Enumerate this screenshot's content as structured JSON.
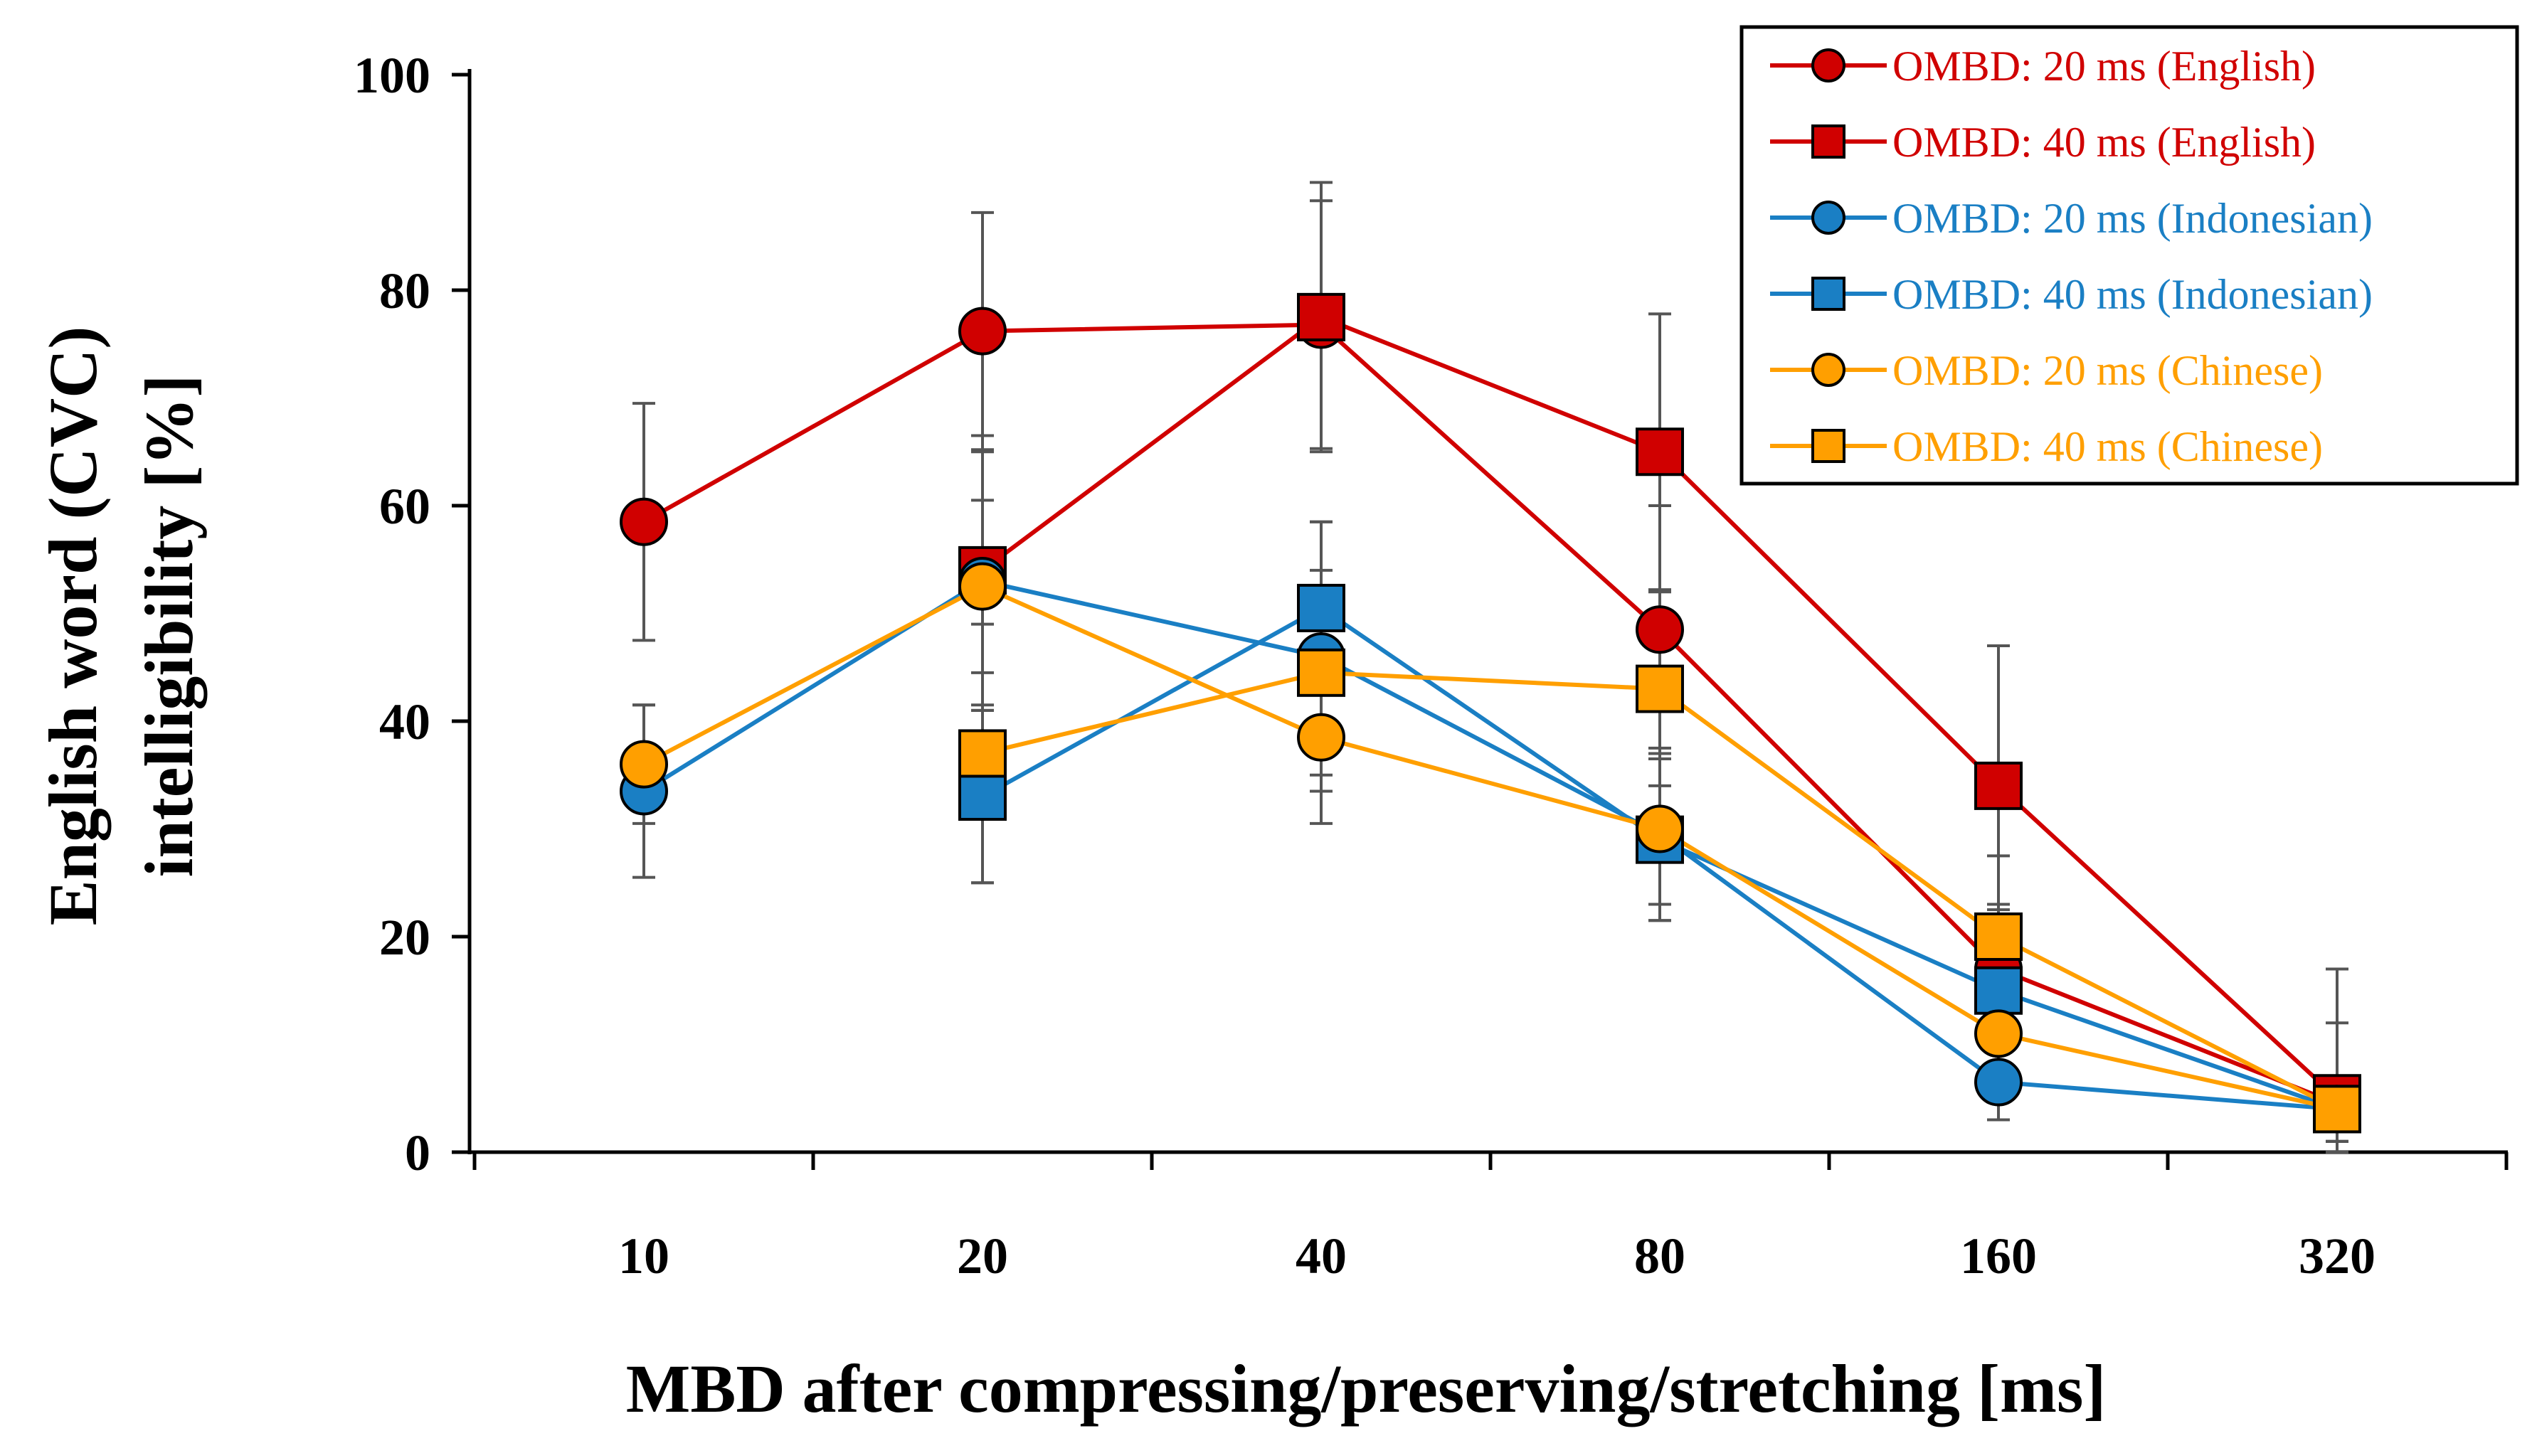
{
  "chart_data": {
    "type": "line",
    "title": "",
    "xlabel": "MBD after compressing/preserving/stretching [ms]",
    "ylabel_lines": [
      "English word (CVC)",
      "intelligibility [%]"
    ],
    "categories": [
      "10",
      "20",
      "40",
      "80",
      "160",
      "320"
    ],
    "ylim": [
      0,
      100
    ],
    "yticks": [
      "0",
      "20",
      "40",
      "60",
      "80",
      "100"
    ],
    "legend_position": "top-right",
    "series": [
      {
        "name": "OMBD: 20 ms (English)",
        "color": "#d00000",
        "marker": "circle",
        "values": [
          58.5,
          76.2,
          76.8,
          48.5,
          17.0,
          4.5
        ],
        "errors": [
          11.0,
          11.0,
          11.5,
          11.5,
          5.5,
          7.5
        ]
      },
      {
        "name": "OMBD: 40 ms (English)",
        "color": "#d00000",
        "marker": "square",
        "values": [
          null,
          54.0,
          77.5,
          65.0,
          34.0,
          5.0
        ],
        "errors": [
          null,
          12.5,
          12.5,
          12.8,
          13.0,
          12.0
        ]
      },
      {
        "name": "OMBD: 20 ms (Indonesian)",
        "color": "#1a7fc4",
        "marker": "circle",
        "values": [
          33.5,
          53.0,
          46.0,
          29.5,
          6.5,
          4.0
        ],
        "errors": [
          8.0,
          12.0,
          12.5,
          8.0,
          3.5,
          3.0
        ]
      },
      {
        "name": "OMBD: 40 ms (Indonesian)",
        "color": "#1a7fc4",
        "marker": "square",
        "values": [
          null,
          33.0,
          50.5,
          29.0,
          15.0,
          4.0
        ],
        "errors": [
          null,
          8.0,
          8.0,
          7.5,
          8.0,
          3.0
        ]
      },
      {
        "name": "OMBD: 20 ms (Chinese)",
        "color": "#ff9f00",
        "marker": "circle",
        "values": [
          36.0,
          52.5,
          38.5,
          30.0,
          11.0,
          4.0
        ],
        "errors": [
          5.5,
          8.0,
          8.0,
          7.0,
          5.0,
          3.0
        ]
      },
      {
        "name": "OMBD: 40 ms (Chinese)",
        "color": "#ff9f00",
        "marker": "square",
        "values": [
          null,
          37.0,
          44.5,
          43.0,
          20.0,
          4.0
        ],
        "errors": [
          null,
          12.0,
          9.5,
          9.0,
          7.5,
          3.0
        ]
      }
    ]
  }
}
